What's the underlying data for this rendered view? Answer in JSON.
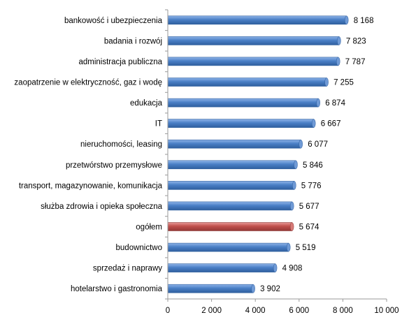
{
  "chart_data": {
    "type": "bar",
    "orientation": "horizontal",
    "title": "",
    "xlabel": "",
    "ylabel": "",
    "categories": [
      "bankowość i ubezpieczenia",
      "badania i rozwój",
      "administracja publiczna",
      "zaopatrzenie w elektryczność, gaz i wodę",
      "edukacja",
      "IT",
      "nieruchomości, leasing",
      "przetwórstwo przemysłowe",
      "transport, magazynowanie,  komunikacja",
      "służba zdrowia i opieka społeczna",
      "ogółem",
      "budownictwo",
      "sprzedaż i naprawy",
      "hotelarstwo i gastronomia"
    ],
    "values": [
      8168,
      7823,
      7787,
      7255,
      6874,
      6667,
      6077,
      5846,
      5776,
      5677,
      5674,
      5519,
      4908,
      3902
    ],
    "value_labels": [
      "8 168",
      "7 823",
      "7 787",
      "7 255",
      "6 874",
      "6 667",
      "6 077",
      "5 846",
      "5 776",
      "5 677",
      "5 674",
      "5 519",
      "4 908",
      "3 902"
    ],
    "highlight_index": 10,
    "xlim": [
      0,
      10000
    ],
    "x_ticks": [
      0,
      2000,
      4000,
      6000,
      8000,
      10000
    ],
    "x_tick_labels": [
      "0",
      "2 000",
      "4 000",
      "6 000",
      "8 000",
      "10 000"
    ],
    "grid": false,
    "legend": "none",
    "colors": {
      "bar": "#4a7fc6",
      "bar_highlight": "#c0504d"
    }
  }
}
